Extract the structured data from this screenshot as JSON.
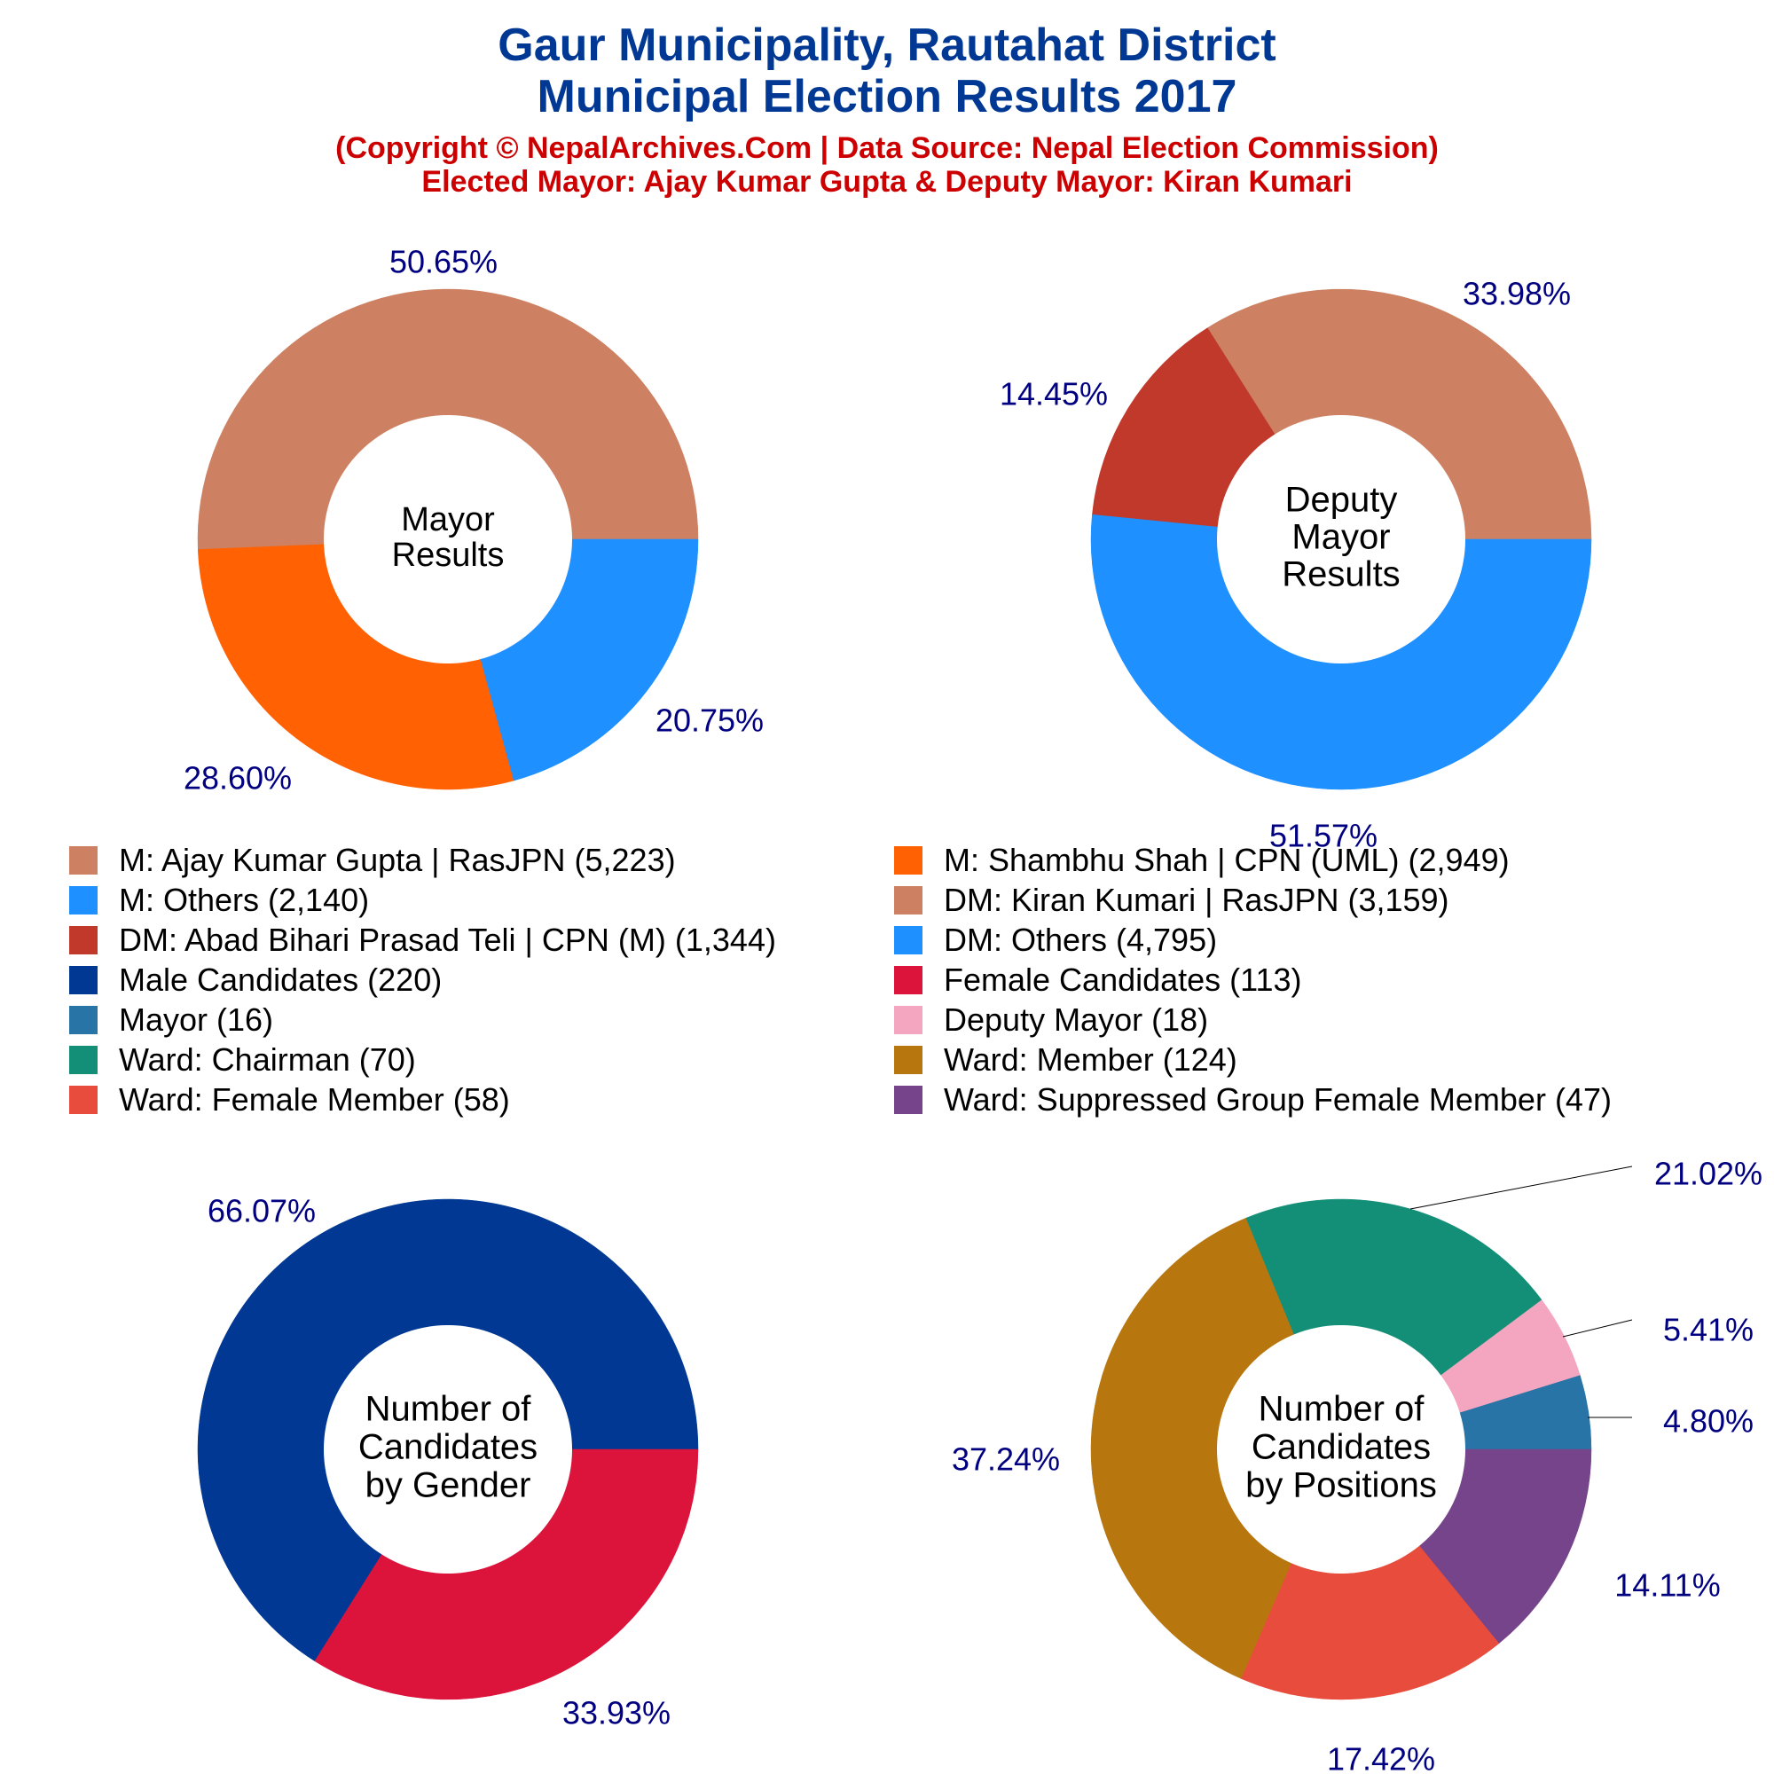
{
  "header": {
    "title_line1": "Gaur Municipality, Rautahat District",
    "title_line2": "Municipal Election Results 2017",
    "subtitle_line1": "(Copyright © NepalArchives.Com | Data Source: Nepal Election Commission)",
    "subtitle_line2": "Elected Mayor: Ajay Kumar Gupta & Deputy Mayor: Kiran Kumari"
  },
  "colors": {
    "title": "#003893",
    "subtitle": "#cc0000",
    "pct_label": "#000080"
  },
  "legend": [
    {
      "label": "M: Ajay Kumar Gupta | RasJPN (5,223)",
      "color": "#cd8162"
    },
    {
      "label": "M: Shambhu Shah | CPN (UML) (2,949)",
      "color": "#ff6103"
    },
    {
      "label": "M: Others (2,140)",
      "color": "#1e90ff"
    },
    {
      "label": "DM: Kiran Kumari | RasJPN (3,159)",
      "color": "#cd8162"
    },
    {
      "label": "DM: Abad Bihari Prasad Teli | CPN (M) (1,344)",
      "color": "#c0392b"
    },
    {
      "label": "DM: Others (4,795)",
      "color": "#1e90ff"
    },
    {
      "label": "Male Candidates (220)",
      "color": "#003893"
    },
    {
      "label": "Female Candidates (113)",
      "color": "#dc143c"
    },
    {
      "label": "Mayor (16)",
      "color": "#2874a6"
    },
    {
      "label": "Deputy Mayor (18)",
      "color": "#f4a6c0"
    },
    {
      "label": "Ward: Chairman (70)",
      "color": "#148f77"
    },
    {
      "label": "Ward: Member (124)",
      "color": "#b8770e"
    },
    {
      "label": "Ward: Female Member (58)",
      "color": "#e74c3c"
    },
    {
      "label": "Ward: Suppressed Group Female Member (47)",
      "color": "#76448a"
    }
  ],
  "chart_data": [
    {
      "type": "pie",
      "center_label": [
        "Mayor",
        "Results"
      ],
      "start_angle_deg": 0,
      "slices": [
        {
          "name": "M: Ajay Kumar Gupta | RasJPN",
          "value": 5223,
          "pct": "50.65%",
          "color": "#cd8162"
        },
        {
          "name": "M: Shambhu Shah | CPN (UML)",
          "value": 2949,
          "pct": "28.60%",
          "color": "#ff6103"
        },
        {
          "name": "M: Others",
          "value": 2140,
          "pct": "20.75%",
          "color": "#1e90ff"
        }
      ]
    },
    {
      "type": "pie",
      "center_label": [
        "Deputy",
        "Mayor",
        "Results"
      ],
      "start_angle_deg": 0,
      "slices": [
        {
          "name": "DM: Kiran Kumari | RasJPN",
          "value": 3159,
          "pct": "33.98%",
          "color": "#cd8162"
        },
        {
          "name": "DM: Abad Bihari Prasad Teli | CPN (M)",
          "value": 1344,
          "pct": "14.45%",
          "color": "#c0392b"
        },
        {
          "name": "DM: Others",
          "value": 4795,
          "pct": "51.57%",
          "color": "#1e90ff"
        }
      ]
    },
    {
      "type": "pie",
      "center_label": [
        "Number of",
        "Candidates",
        "by Gender"
      ],
      "start_angle_deg": 0,
      "slices": [
        {
          "name": "Male Candidates",
          "value": 220,
          "pct": "66.07%",
          "color": "#003893"
        },
        {
          "name": "Female Candidates",
          "value": 113,
          "pct": "33.93%",
          "color": "#dc143c"
        }
      ]
    },
    {
      "type": "pie",
      "center_label": [
        "Number of",
        "Candidates",
        "by Positions"
      ],
      "start_angle_deg": 0,
      "slices": [
        {
          "name": "Mayor",
          "value": 16,
          "pct": "4.80%",
          "color": "#2874a6"
        },
        {
          "name": "Deputy Mayor",
          "value": 18,
          "pct": "5.41%",
          "color": "#f4a6c0"
        },
        {
          "name": "Ward: Chairman",
          "value": 70,
          "pct": "21.02%",
          "color": "#148f77"
        },
        {
          "name": "Ward: Member",
          "value": 124,
          "pct": "37.24%",
          "color": "#b8770e"
        },
        {
          "name": "Ward: Female Member",
          "value": 58,
          "pct": "17.42%",
          "color": "#e74c3c"
        },
        {
          "name": "Ward: Suppressed Group Female Member",
          "value": 47,
          "pct": "14.11%",
          "color": "#76448a"
        }
      ]
    }
  ]
}
